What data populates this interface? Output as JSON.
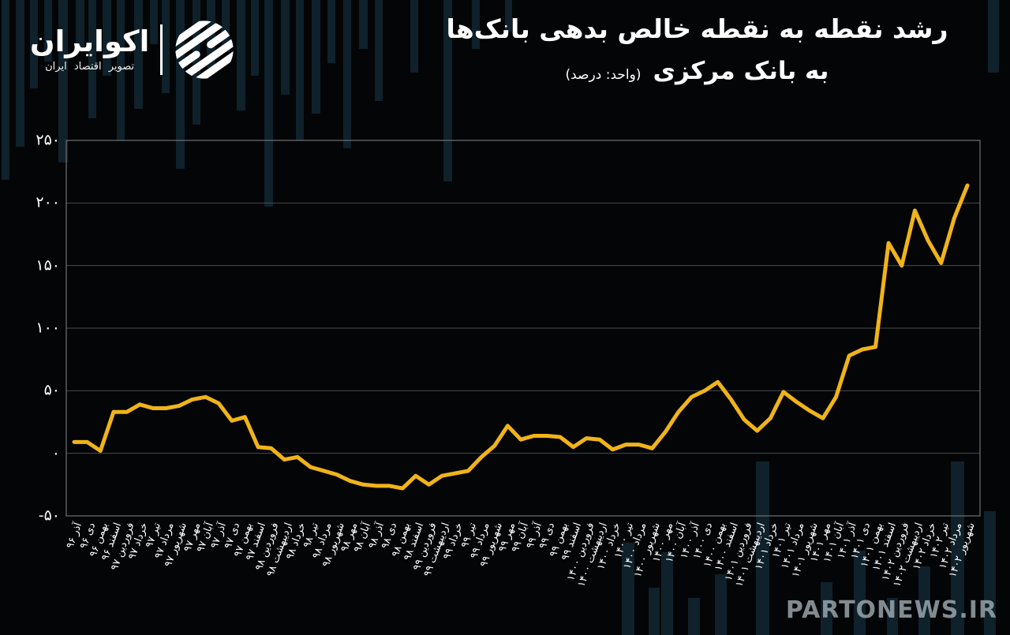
{
  "header": {
    "logo": {
      "brand": "اکوایران",
      "tagline": "تصویر اقتصاد ایران"
    },
    "title_line1": "رشد نقطه به نقطه خالص بدهی بانک‌ها",
    "title_line2": "به بانک مرکزی",
    "title_unit": "(واحد: درصد)"
  },
  "watermark": "PARTONEWS.IR",
  "colors": {
    "background": "#040507",
    "line": "#F0B419",
    "grid": "#474b4e",
    "border": "#6e7377",
    "text": "#ffffff",
    "background_bars": "#16394a"
  },
  "chart_data": {
    "type": "line",
    "title": "رشد نقطه به نقطه خالص بدهی بانک‌ها به بانک مرکزی",
    "unit_label": "(واحد: درصد)",
    "xlabel": "",
    "ylabel": "",
    "ylim": [
      -50,
      250
    ],
    "grid": true,
    "legend_position": "none",
    "y_ticks": [
      250,
      200,
      150,
      100,
      50,
      0,
      -50
    ],
    "y_tick_labels": [
      "۲۵۰",
      "۲۰۰",
      "۱۵۰",
      "۱۰۰",
      "۵۰",
      "۰",
      "-۵۰"
    ],
    "categories": [
      "آذر ۹۶",
      "دی ۹۶",
      "بهمن ۹۶",
      "اسفند ۹۶",
      "فروردین ۹۷",
      "خرداد ۹۷",
      "تیر ۹۷",
      "مرداد ۹۷",
      "شهریور ۹۷",
      "مهر ۹۷",
      "آبان ۹۷",
      "آذر ۹۷",
      "دی ۹۷",
      "بهمن ۹۷",
      "اسفند ۹۷",
      "فروردین ۹۸",
      "اردیبهشت ۹۸",
      "خرداد ۹۸",
      "تیر ۹۸",
      "مرداد ۹۸",
      "شهریور ۹۸",
      "مهر ۹۸",
      "آبان ۹۸",
      "آذر ۹۸",
      "دی ۹۸",
      "بهمن ۹۸",
      "اسفند ۹۸",
      "فروردین ۹۹",
      "اردیبهشت ۹۹",
      "خرداد ۹۹",
      "تیر ۹۹",
      "مرداد ۹۹",
      "شهریور ۹۹",
      "مهر ۹۹",
      "آبان ۹۹",
      "آذر ۹۹",
      "دی ۹۹",
      "بهمن ۹۹",
      "اسفند ۹۹",
      "فروردین ۱۴۰۰",
      "اردیبهشت ۱۴۰۰",
      "خرداد ۱۴۰۰",
      "تیر ۱۴۰۰",
      "مرداد ۱۴۰۰",
      "شهریور ۱۴۰۰",
      "مهر ۱۴۰۰",
      "آبان ۱۴۰۰",
      "آذر ۱۴۰۰",
      "دی ۱۴۰۰",
      "بهمن ۱۴۰۰",
      "اسفند ۱۴۰۰",
      "فروردین ۱۴۰۱",
      "اردیبهشت ۱۴۰۱",
      "خرداد ۱۴۰۱",
      "تیر ۱۴۰۱",
      "مرداد ۱۴۰۱",
      "شهریور ۱۴۰۱",
      "مهر ۱۴۰۱",
      "آبان ۱۴۰۱",
      "آذر ۱۴۰۱",
      "دی ۱۴۰۱",
      "بهمن ۱۴۰۱",
      "اسفند ۱۴۰۱",
      "فروردین ۱۴۰۲",
      "اردیبهشت ۱۴۰۲",
      "خرداد ۱۴۰۲",
      "تیر ۱۴۰۲",
      "مرداد ۱۴۰۲",
      "شهریور ۱۴۰۲"
    ],
    "values": [
      9,
      9,
      2,
      33,
      33,
      39,
      36,
      36,
      38,
      43,
      45,
      40,
      26,
      29,
      5,
      4,
      -5,
      -3,
      -11,
      -14,
      -17,
      -22,
      -25,
      -26,
      -26,
      -28,
      -18,
      -25,
      -18,
      -16,
      -14,
      -3,
      6,
      22,
      11,
      14,
      14,
      13,
      5,
      12,
      11,
      3,
      7,
      7,
      4,
      17,
      33,
      45,
      50,
      57,
      43,
      27,
      18,
      28,
      49,
      41,
      34,
      28,
      45,
      78,
      83,
      85,
      168,
      150,
      194,
      170,
      152,
      188,
      214
    ]
  }
}
